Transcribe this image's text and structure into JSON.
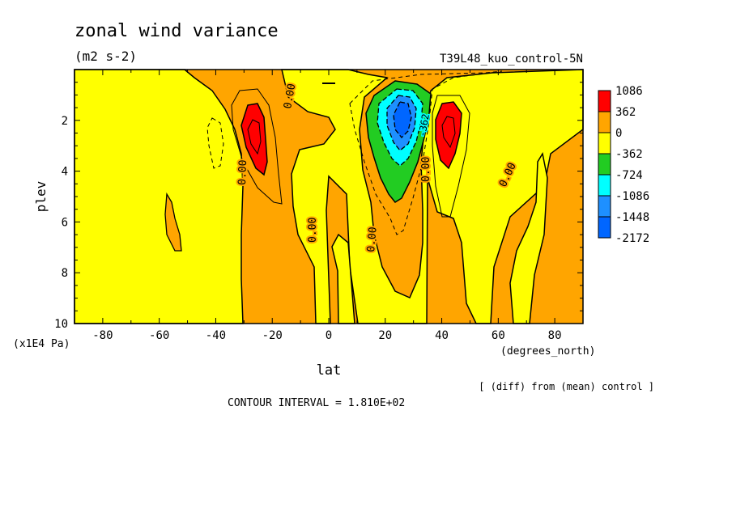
{
  "chart_data": {
    "type": "heatmap",
    "title": "zonal wind variance",
    "units": "(m2 s-2)",
    "subtitle": "T39L48_kuo_control-5N",
    "xlabel": "lat",
    "xunits": "(degrees_north)",
    "ylabel": "plev",
    "yunits": "(x1E4 Pa)",
    "xlim": [
      -90,
      90
    ],
    "ylim": [
      10,
      0
    ],
    "x_ticks": [
      -80,
      -60,
      -40,
      -20,
      0,
      20,
      40,
      60,
      80
    ],
    "y_ticks": [
      2,
      4,
      6,
      8,
      10
    ],
    "diff_note": "[ (diff) from (mean) control ]",
    "contour_interval_text": "CONTOUR INTERVAL = 1.810E+02",
    "contour_interval": 181,
    "contour_labels": [
      "0.00",
      "0.00",
      "0.00",
      "0.00",
      "0.00",
      "0.00",
      "-362"
    ],
    "legend": {
      "labels": [
        "1086",
        "362",
        "0",
        "-362",
        "-724",
        "-1086",
        "-1448",
        "-2172"
      ],
      "colors": [
        "#ff0000",
        "#ffa500",
        "#ffff00",
        "#22cc22",
        "#00ffff",
        "#1e90ff",
        "#0066ff"
      ]
    },
    "features": [
      {
        "kind": "max",
        "lat": -27,
        "plev": 2.8,
        "value": 1086
      },
      {
        "kind": "max",
        "lat": 41,
        "plev": 2.6,
        "value": 1086
      },
      {
        "kind": "min",
        "lat": 25,
        "plev": 2.2,
        "value": -2172
      }
    ]
  }
}
